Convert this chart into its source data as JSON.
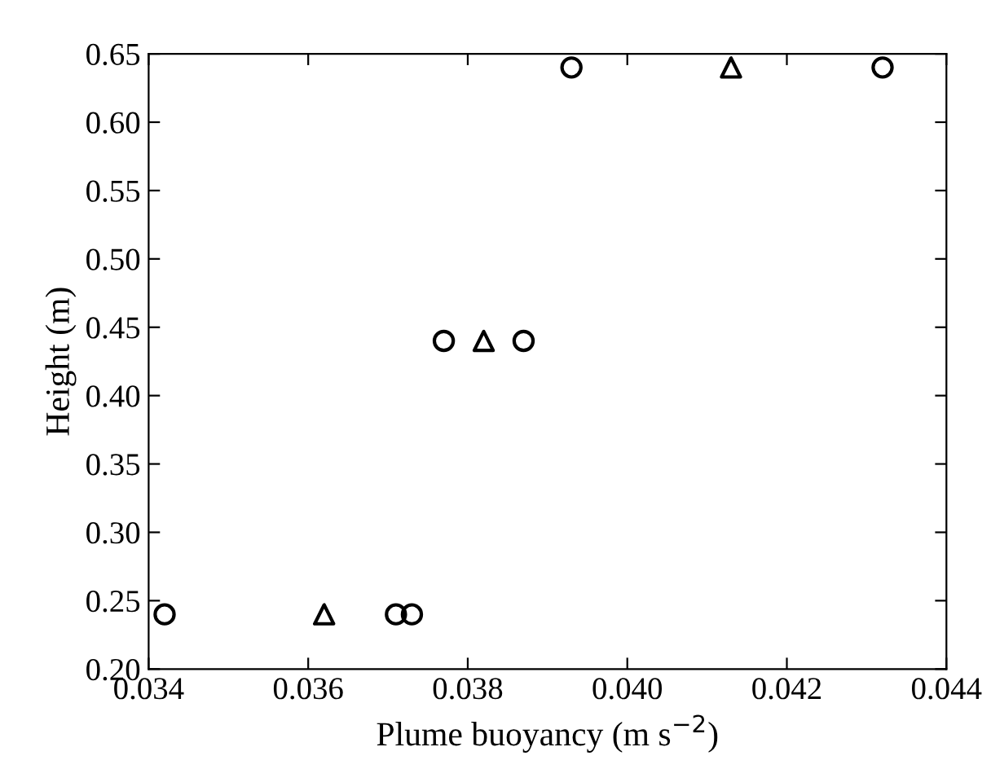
{
  "chart_data": {
    "type": "scatter",
    "xlabel": "Plume buoyancy (m s$^{−2}$)",
    "ylabel": "Height (m)",
    "series": [
      {
        "color": "#000000",
        "marker": "circle",
        "x": [
          0.0342,
          0.0371,
          0.0373,
          0.0377,
          0.0387,
          0.0393,
          0.0432
        ],
        "values": [
          0.24,
          0.24,
          0.24,
          0.44,
          0.44,
          0.64,
          0.64
        ]
      },
      {
        "color": "#000000",
        "marker": "triangle",
        "x": [
          0.0362,
          0.0382,
          0.0413
        ],
        "values": [
          0.24,
          0.44,
          0.64
        ]
      }
    ],
    "xlim": [
      0.034,
      0.044
    ],
    "xticks": [
      {
        "value": 0.034,
        "label": "0.034"
      },
      {
        "value": 0.036,
        "label": "0.036"
      },
      {
        "value": 0.038,
        "label": "0.038"
      },
      {
        "value": 0.04,
        "label": "0.040"
      },
      {
        "value": 0.042,
        "label": "0.042"
      },
      {
        "value": 0.044,
        "label": "0.044"
      }
    ],
    "ylim": [
      0.2,
      0.65
    ],
    "yticks": [
      {
        "value": 0.2,
        "label": "0.20"
      },
      {
        "value": 0.25,
        "label": "0.25"
      },
      {
        "value": 0.3,
        "label": "0.30"
      },
      {
        "value": 0.35,
        "label": "0.35"
      },
      {
        "value": 0.4,
        "label": "0.40"
      },
      {
        "value": 0.45,
        "label": "0.45"
      },
      {
        "value": 0.5,
        "label": "0.50"
      },
      {
        "value": 0.55,
        "label": "0.55"
      },
      {
        "value": 0.6,
        "label": "0.60"
      },
      {
        "value": 0.65,
        "label": "0.65"
      }
    ],
    "grid": false,
    "legend": false
  }
}
